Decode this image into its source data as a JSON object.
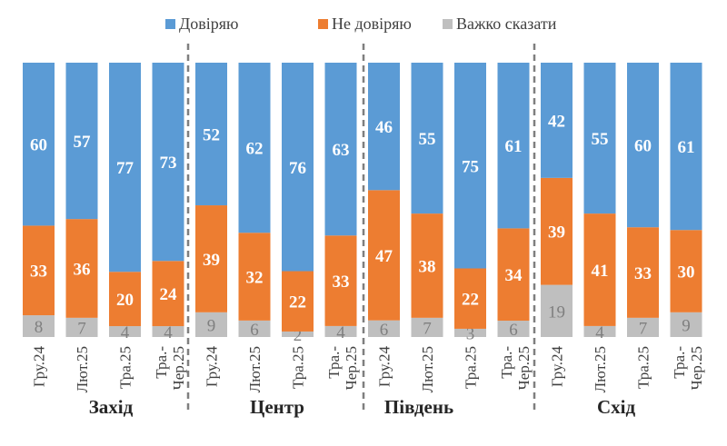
{
  "chart_data": {
    "type": "bar",
    "stacked": true,
    "legend_placement": "top",
    "grid": false,
    "series": [
      {
        "name": "Довіряю",
        "color": "#5B9BD5",
        "label_color": "#ffffff",
        "values": [
          60,
          57,
          77,
          73,
          52,
          62,
          76,
          63,
          46,
          55,
          75,
          61,
          42,
          55,
          60,
          61
        ]
      },
      {
        "name": "Не довіряю",
        "color": "#ED7D31",
        "label_color": "#ffffff",
        "values": [
          33,
          36,
          20,
          24,
          39,
          32,
          22,
          33,
          47,
          38,
          22,
          34,
          39,
          41,
          33,
          30
        ]
      },
      {
        "name": "Важко сказати",
        "color": "#BFBFBF",
        "label_color": "#7f7f7f",
        "values": [
          8,
          7,
          4,
          4,
          9,
          6,
          2,
          4,
          6,
          7,
          3,
          6,
          19,
          4,
          7,
          9
        ]
      }
    ],
    "categories": [
      "Гру.24",
      "Лют.25",
      "Тра.25",
      "Тра.-Чер.25",
      "Гру.24",
      "Лют.25",
      "Тра.25",
      "Тра.-Чер.25",
      "Гру.24",
      "Лют.25",
      "Тра.25",
      "Тра.-Чер.25",
      "Гру.24",
      "Лют.25",
      "Тра.25",
      "Тра.-Чер.25"
    ],
    "groups": [
      "Захід",
      "Центр",
      "Південь",
      "Схід"
    ]
  }
}
